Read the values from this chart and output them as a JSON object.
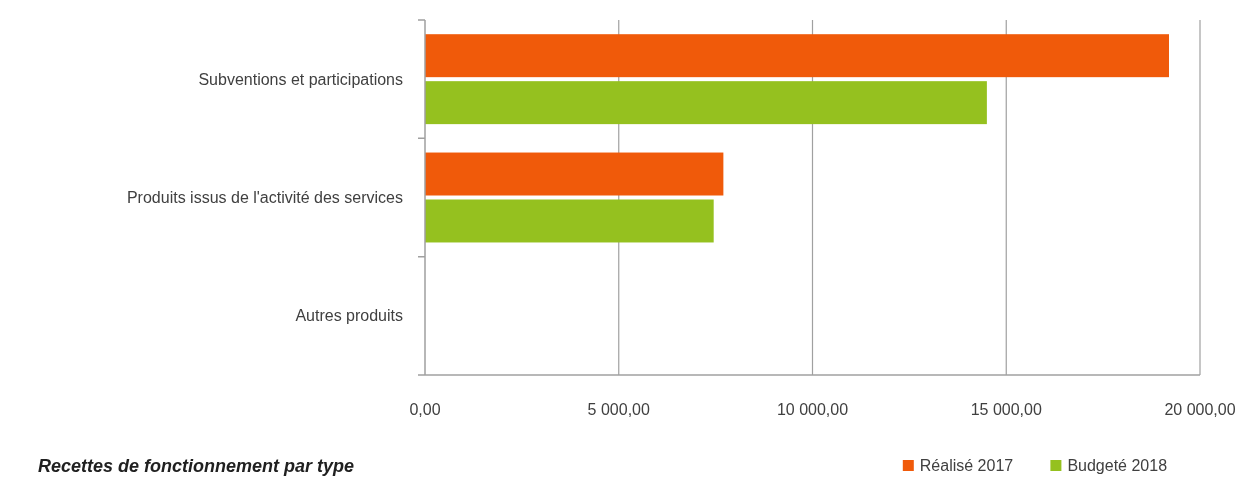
{
  "chart_data": {
    "type": "bar",
    "orientation": "horizontal",
    "title": "Recettes de fonctionnement par type",
    "categories": [
      "Subventions et participations",
      "Produits issus de l'activité des services",
      "Autres produits"
    ],
    "series": [
      {
        "name": "Réalisé 2017",
        "color": "#f05a0a",
        "values": [
          19200,
          7700,
          null
        ]
      },
      {
        "name": "Budgeté 2018",
        "color": "#95c11f",
        "values": [
          14500,
          7450,
          null
        ]
      }
    ],
    "xlim": [
      0,
      20000
    ],
    "xticks": [
      {
        "value": 0,
        "label": "0,00"
      },
      {
        "value": 5000,
        "label": "5 000,00"
      },
      {
        "value": 10000,
        "label": "10 000,00"
      },
      {
        "value": 15000,
        "label": "15 000,00"
      },
      {
        "value": 20000,
        "label": "20 000,00"
      }
    ],
    "grid": "x",
    "legend": "bottom right"
  }
}
